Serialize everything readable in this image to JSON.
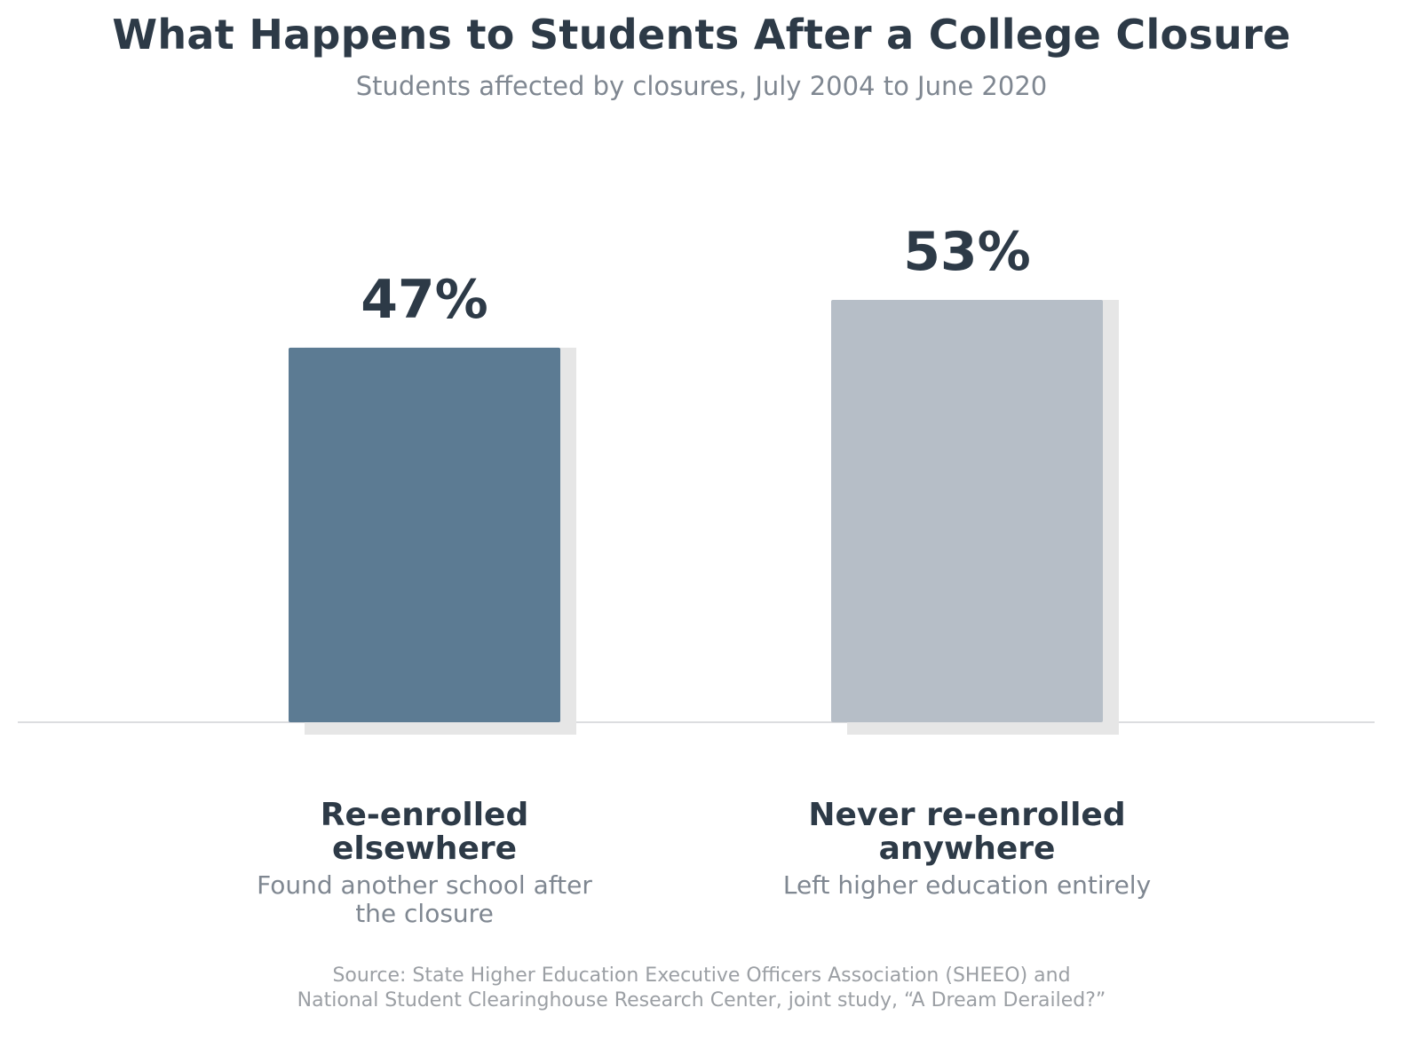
{
  "chart_data": {
    "type": "bar",
    "title": "What Happens to Students After a College Closure",
    "subtitle": "Students affected by closures, July 2004 to June 2020",
    "unit": "%",
    "categories": [
      {
        "label": "Re-enrolled elsewhere",
        "description": "Found another school after the closure",
        "value": 47,
        "value_label": "47%",
        "color": "#5c7b93"
      },
      {
        "label": "Never re-enrolled anywhere",
        "description": "Left higher education entirely",
        "value": 53,
        "value_label": "53%",
        "color": "#b6bec7"
      }
    ],
    "ylim": [
      0,
      53
    ],
    "grid": false,
    "legend": "none",
    "source_lines": [
      "Source: State Higher Education Executive Officers Association (SHEEO) and",
      "National Student Clearinghouse Research Center, joint study, “A Dream Derailed?”"
    ],
    "colors": {
      "text_dark": "#2d3a47",
      "text_muted": "#7f8791",
      "source": "#9b9fa4",
      "baseline": "#dcdde0",
      "shadow": "#e6e6e6"
    }
  }
}
